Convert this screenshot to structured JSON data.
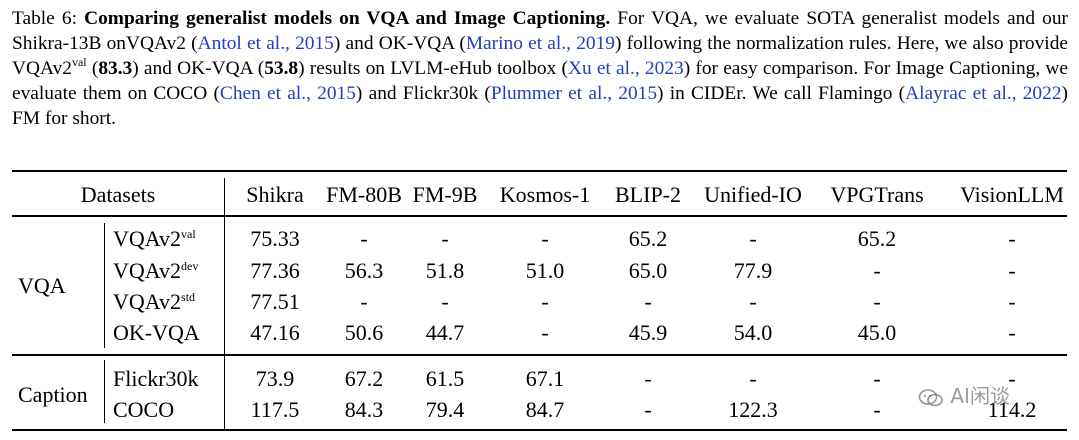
{
  "caption": {
    "label": "Table 6:",
    "title": "Comparing generalist models on VQA and Image Captioning.",
    "s1": " For VQA, we evaluate SOTA generalist models and our Shikra-13B onVQAv2 (",
    "cite1": "Antol et al., 2015",
    "s2": ") and OK-VQA (",
    "cite2": "Marino et al., 2019",
    "s3": ") following the normalization rules. Here, we also provide VQAv2",
    "sup_val": "val",
    "s4": " (",
    "num1": "83.3",
    "s5": ") and OK-VQA (",
    "num2": "53.8",
    "s6": ") results on LVLM-eHub toolbox (",
    "cite3": "Xu et al., 2023",
    "s7": ") for easy comparison. For Image Captioning, we evaluate them on COCO (",
    "cite4": "Chen et al., 2015",
    "s8": ") and Flickr30k (",
    "cite5": "Plummer et al., 2015",
    "s9": ") in CIDEr. We call Flamingo (",
    "cite6": "Alayrac et al., 2022",
    "s10": ") FM for short."
  },
  "table": {
    "datasets_header": "Datasets",
    "columns": [
      "Shikra",
      "FM-80B",
      "FM-9B",
      "Kosmos-1",
      "BLIP-2",
      "Unified-IO",
      "VPGTrans",
      "VisionLLM"
    ],
    "groups": [
      {
        "name": "VQA",
        "rows": [
          {
            "base": "VQAv2",
            "sup": "val",
            "values": [
              "75.33",
              "-",
              "-",
              "-",
              "65.2",
              "-",
              "65.2",
              "-"
            ]
          },
          {
            "base": "VQAv2",
            "sup": "dev",
            "values": [
              "77.36",
              "56.3",
              "51.8",
              "51.0",
              "65.0",
              "77.9",
              "-",
              "-"
            ]
          },
          {
            "base": "VQAv2",
            "sup": "std",
            "values": [
              "77.51",
              "-",
              "-",
              "-",
              "-",
              "-",
              "-",
              "-"
            ]
          },
          {
            "base": "OK-VQA",
            "sup": "",
            "values": [
              "47.16",
              "50.6",
              "44.7",
              "-",
              "45.9",
              "54.0",
              "45.0",
              "-"
            ]
          }
        ]
      },
      {
        "name": "Caption",
        "rows": [
          {
            "base": "Flickr30k",
            "sup": "",
            "values": [
              "73.9",
              "67.2",
              "61.5",
              "67.1",
              "-",
              "-",
              "-",
              "-"
            ]
          },
          {
            "base": "COCO",
            "sup": "",
            "values": [
              "117.5",
              "84.3",
              "79.4",
              "84.7",
              "-",
              "122.3",
              "-",
              "114.2"
            ]
          }
        ]
      }
    ]
  },
  "watermark": "AI闲谈"
}
